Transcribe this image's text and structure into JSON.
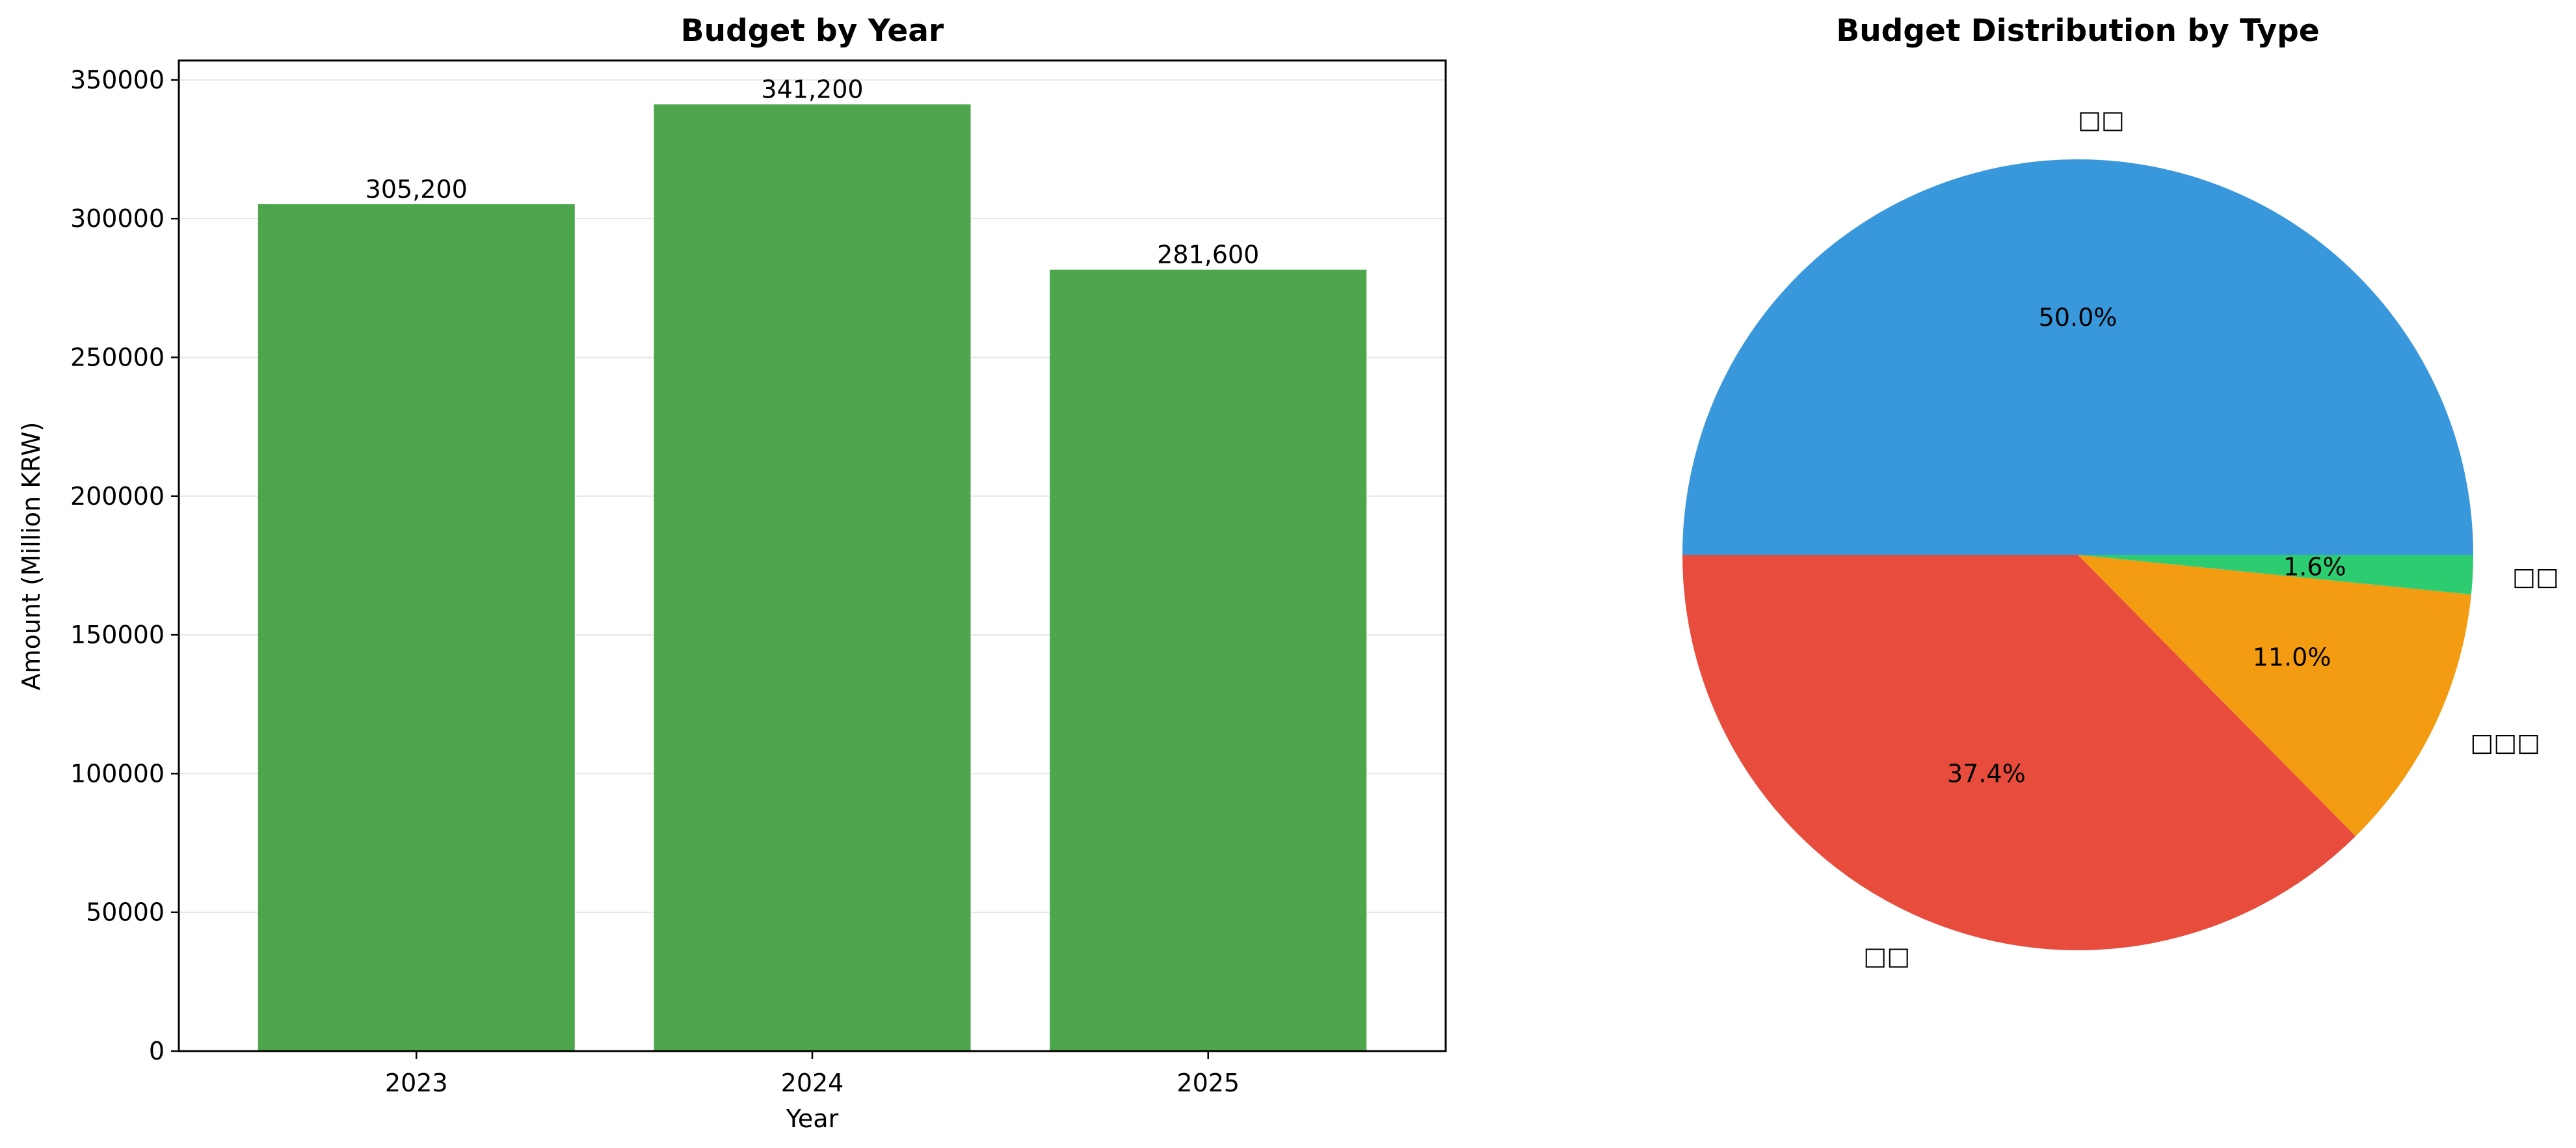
{
  "chart_data": [
    {
      "type": "bar",
      "title": "Budget by Year",
      "xlabel": "Year",
      "ylabel": "Amount (Million KRW)",
      "categories": [
        "2023",
        "2024",
        "2025"
      ],
      "values": [
        305200,
        341200,
        281600
      ],
      "value_labels": [
        "305,200",
        "341,200",
        "281,600"
      ],
      "ylim": [
        0,
        357000
      ],
      "yticks": [
        0,
        50000,
        100000,
        150000,
        200000,
        250000,
        300000,
        350000
      ],
      "ytick_labels": [
        "0",
        "50000",
        "100000",
        "150000",
        "200000",
        "250000",
        "300000",
        "350000"
      ],
      "grid": "horizontal",
      "bar_color": "#4ea64c"
    },
    {
      "type": "pie",
      "title": "Budget Distribution by Type",
      "slices": [
        {
          "label": "□□",
          "value": 50.0,
          "pct_label": "50.0%",
          "color": "#3898db"
        },
        {
          "label": "□□",
          "value": 37.4,
          "pct_label": "37.4%",
          "color": "#e74c3c"
        },
        {
          "label": "□□□",
          "value": 11.0,
          "pct_label": "11.0%",
          "color": "#f39c12"
        },
        {
          "label": "□□",
          "value": 1.6,
          "pct_label": "1.6%",
          "color": "#2ecc71"
        }
      ]
    }
  ]
}
